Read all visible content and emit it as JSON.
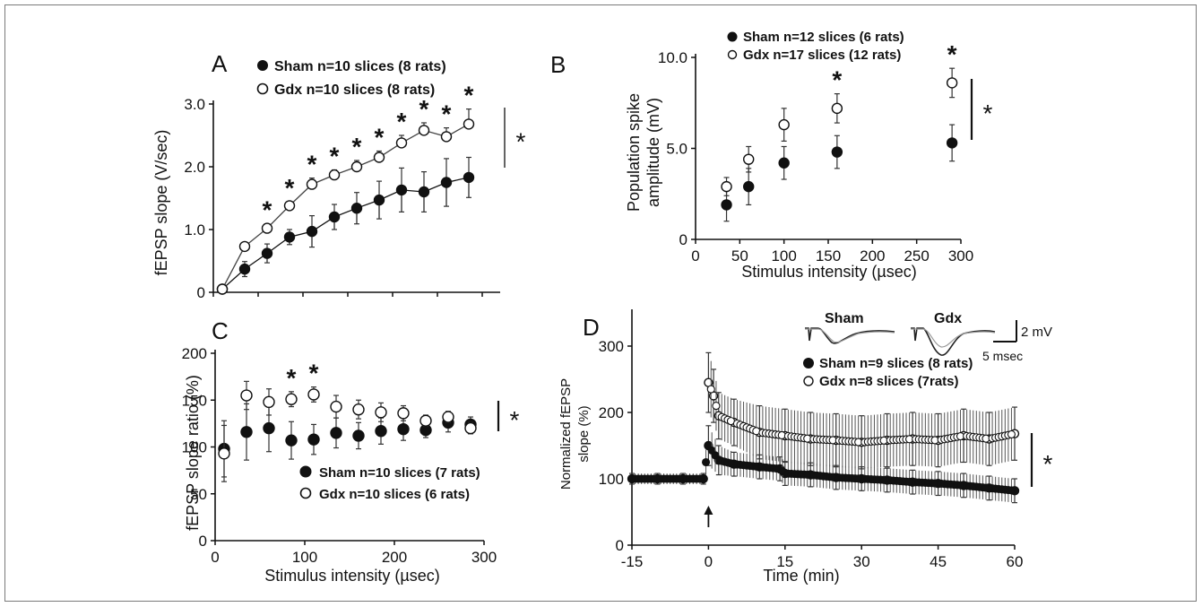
{
  "chart_data": [
    {
      "panel": "A",
      "type": "line",
      "ylabel": "fEPSP slope (V/sec)",
      "xlabel": "",
      "ylim": [
        0,
        3.0
      ],
      "xlim": [
        0,
        320
      ],
      "yticks": [
        "0",
        "1.0",
        "2.0",
        "3.0"
      ],
      "significance": "*",
      "series": [
        {
          "name": "Sham n=10 slices (8 rats)",
          "marker": "filled",
          "x": [
            10,
            35,
            60,
            85,
            110,
            135,
            160,
            185,
            210,
            235,
            260,
            285
          ],
          "y": [
            0.05,
            0.37,
            0.62,
            0.88,
            0.97,
            1.2,
            1.34,
            1.47,
            1.63,
            1.6,
            1.75,
            1.83
          ],
          "err": [
            0,
            0.12,
            0.15,
            0.12,
            0.25,
            0.2,
            0.25,
            0.3,
            0.35,
            0.32,
            0.38,
            0.32
          ]
        },
        {
          "name": "Gdx n=10 slices (8 rats)",
          "marker": "open",
          "x": [
            10,
            35,
            60,
            85,
            110,
            135,
            160,
            185,
            210,
            235,
            260,
            285
          ],
          "y": [
            0.05,
            0.73,
            1.02,
            1.38,
            1.72,
            1.87,
            2.0,
            2.15,
            2.38,
            2.58,
            2.48,
            2.68
          ],
          "err": [
            0,
            0.05,
            0.07,
            0.06,
            0.1,
            0.08,
            0.1,
            0.1,
            0.12,
            0.12,
            0.14,
            0.24
          ]
        }
      ],
      "asterisks_x": [
        60,
        85,
        110,
        135,
        160,
        185,
        210,
        235,
        260,
        285
      ]
    },
    {
      "panel": "B",
      "type": "scatter",
      "ylabel": "Population spike amplitude (mV)",
      "xlabel": "Stimulus intensity (µsec)",
      "ylim": [
        0,
        10.0
      ],
      "xlim": [
        0,
        300
      ],
      "yticks": [
        "0",
        "5.0",
        "10.0"
      ],
      "xticks": [
        "0",
        "50",
        "100",
        "150",
        "200",
        "250",
        "300"
      ],
      "significance": "*",
      "series": [
        {
          "name": "Sham n=12 slices (6 rats)",
          "marker": "filled",
          "x": [
            35,
            60,
            100,
            160,
            290
          ],
          "y": [
            1.9,
            2.9,
            4.2,
            4.8,
            5.3
          ],
          "err": [
            0.9,
            1.0,
            0.9,
            0.9,
            1.0
          ]
        },
        {
          "name": "Gdx n=17 slices (12 rats)",
          "marker": "open",
          "x": [
            35,
            60,
            100,
            160,
            290
          ],
          "y": [
            2.9,
            4.4,
            6.3,
            7.2,
            8.6
          ],
          "err": [
            0.5,
            0.7,
            0.9,
            0.8,
            0.8
          ]
        }
      ],
      "asterisks_x": [
        160,
        290
      ]
    },
    {
      "panel": "C",
      "type": "scatter",
      "ylabel": "fEPSP slope ratio (%)",
      "xlabel": "Stimulus intensity (µsec)",
      "ylim": [
        0,
        200
      ],
      "xlim": [
        0,
        300
      ],
      "yticks": [
        "0",
        "50",
        "100",
        "150",
        "200"
      ],
      "xticks": [
        "0",
        "100",
        "200",
        "300"
      ],
      "significance": "*",
      "series": [
        {
          "name": "Sham n=10 slices (7 rats)",
          "marker": "filled",
          "x": [
            10,
            35,
            60,
            85,
            110,
            135,
            160,
            185,
            210,
            235,
            260,
            285
          ],
          "y": [
            98,
            116,
            120,
            107,
            108,
            115,
            112,
            117,
            119,
            118,
            126,
            124
          ],
          "err": [
            30,
            30,
            25,
            20,
            16,
            16,
            14,
            14,
            12,
            8,
            10,
            8
          ]
        },
        {
          "name": "Gdx n=10 slices (6 rats)",
          "marker": "open",
          "x": [
            10,
            35,
            60,
            85,
            110,
            135,
            160,
            185,
            210,
            235,
            260,
            285
          ],
          "y": [
            93,
            155,
            148,
            151,
            156,
            143,
            140,
            137,
            136,
            128,
            132,
            120
          ],
          "err": [
            30,
            15,
            14,
            8,
            8,
            12,
            10,
            10,
            8,
            6,
            6,
            6
          ]
        }
      ],
      "asterisks_x": [
        85,
        110
      ]
    },
    {
      "panel": "D",
      "type": "scatter",
      "ylabel": "Normalized fEPSP slope (%)",
      "xlabel": "Time (min)",
      "ylim": [
        0,
        350
      ],
      "xlim": [
        -15,
        60
      ],
      "yticks": [
        "0",
        "100",
        "200",
        "300"
      ],
      "xticks": [
        "-15",
        "0",
        "15",
        "30",
        "45",
        "60"
      ],
      "significance": "*",
      "series": [
        {
          "name": "Sham  n=9 slices (8 rats)",
          "marker": "filled",
          "x": [
            -15,
            -10,
            -5,
            -1,
            0,
            2,
            5,
            10,
            14,
            15,
            20,
            25,
            30,
            35,
            40,
            45,
            50,
            55,
            60
          ],
          "y": [
            100,
            100,
            100,
            100,
            150,
            128,
            122,
            118,
            115,
            108,
            106,
            102,
            100,
            98,
            95,
            93,
            90,
            86,
            82
          ],
          "err": [
            8,
            8,
            8,
            8,
            30,
            22,
            18,
            18,
            18,
            18,
            18,
            18,
            18,
            18,
            18,
            18,
            18,
            18,
            18
          ]
        },
        {
          "name": "Gdx n=8 slices (7rats)",
          "marker": "open",
          "x": [
            0,
            1,
            2,
            5,
            10,
            15,
            20,
            25,
            30,
            35,
            40,
            45,
            50,
            55,
            60
          ],
          "y": [
            245,
            225,
            195,
            185,
            170,
            165,
            160,
            158,
            155,
            158,
            160,
            158,
            165,
            160,
            168
          ],
          "err": [
            45,
            40,
            35,
            35,
            40,
            40,
            40,
            40,
            40,
            40,
            40,
            40,
            40,
            40,
            40
          ]
        }
      ],
      "arrow_x": 0,
      "inset": {
        "labels": [
          "Sham",
          "Gdx"
        ],
        "scale_v": "2  mV",
        "scale_t": "5 msec"
      }
    }
  ]
}
